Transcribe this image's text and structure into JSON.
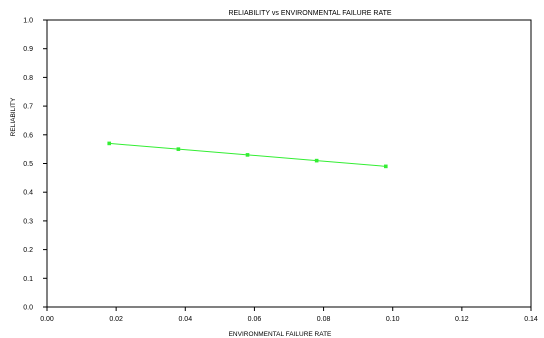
{
  "chart_data": {
    "type": "line",
    "title": "RELIABILITY vs ENVIRONMENTAL FAILURE RATE",
    "xlabel": "ENVIRONMENTAL FAILURE RATE",
    "ylabel": "RELIABILITY",
    "xlim": [
      0.0,
      0.14
    ],
    "ylim": [
      0.0,
      1.0
    ],
    "x_ticks": [
      "0.00",
      "0.02",
      "0.04",
      "0.06",
      "0.08",
      "0.10",
      "0.12",
      "0.14"
    ],
    "y_ticks": [
      "0.0",
      "0.1",
      "0.2",
      "0.3",
      "0.4",
      "0.5",
      "0.6",
      "0.7",
      "0.8",
      "0.9",
      "1.0"
    ],
    "grid": false,
    "series": [
      {
        "color": "#33ee33",
        "x": [
          0.018,
          0.038,
          0.058,
          0.078,
          0.098
        ],
        "y": [
          0.57,
          0.55,
          0.53,
          0.51,
          0.49
        ]
      }
    ]
  }
}
